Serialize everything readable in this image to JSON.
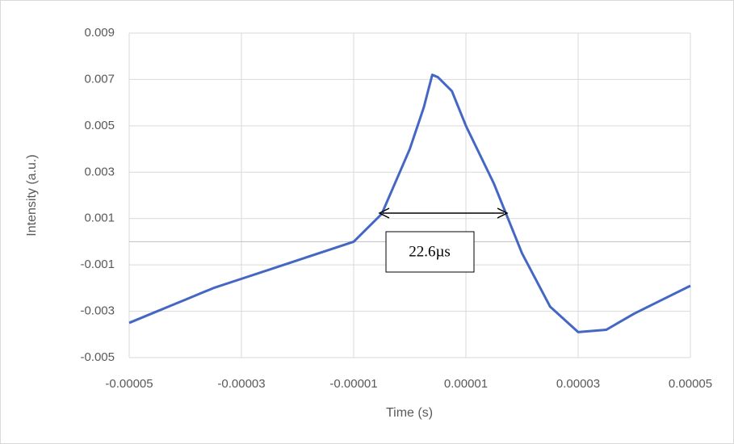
{
  "chart_data": {
    "type": "line",
    "x_label": "Time (s)",
    "y_label": "Intensity (a.u.)",
    "annotation": "22.6µs",
    "color": "#4466c4",
    "grid": true,
    "xlim": [
      -5e-05,
      5e-05
    ],
    "xticks": [
      -5e-05,
      -3e-05,
      -1e-05,
      1e-05,
      3e-05,
      5e-05
    ],
    "ylim": [
      -0.005,
      0.009
    ],
    "yticks": [
      0.009,
      0.007,
      0.005,
      0.003,
      0.001,
      -0.001,
      -0.003,
      -0.005
    ],
    "x": [
      -5e-05,
      -4.5e-05,
      -4e-05,
      -3.5e-05,
      -3e-05,
      -2.5e-05,
      -2e-05,
      -1.5e-05,
      -1e-05,
      -5e-06,
      0,
      2.5e-06,
      4e-06,
      5e-06,
      7.5e-06,
      1e-05,
      1.5e-05,
      2e-05,
      2.5e-05,
      3e-05,
      3.5e-05,
      4e-05,
      4.5e-05,
      5e-05
    ],
    "values": [
      -0.0035,
      -0.003,
      -0.0025,
      -0.002,
      -0.0016,
      -0.0012,
      -0.0008,
      -0.0004,
      0.0,
      0.0012,
      0.004,
      0.0058,
      0.0072,
      0.0071,
      0.0065,
      0.005,
      0.0025,
      -0.0005,
      -0.0028,
      -0.0039,
      -0.0038,
      -0.0031,
      -0.0025,
      -0.0019
    ]
  }
}
